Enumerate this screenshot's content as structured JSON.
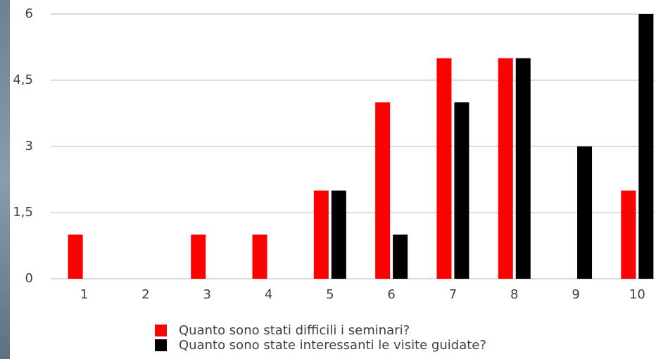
{
  "chart_data": {
    "type": "bar",
    "categories": [
      "1",
      "2",
      "3",
      "4",
      "5",
      "6",
      "7",
      "8",
      "9",
      "10"
    ],
    "series": [
      {
        "name": "Quanto sono stati difficili i seminari?",
        "color": "#ff0000",
        "values": [
          1,
          0,
          1,
          1,
          2,
          4,
          5,
          5,
          0,
          2
        ]
      },
      {
        "name": "Quanto sono state interessanti le visite guidate?",
        "color": "#000000",
        "values": [
          0,
          0,
          0,
          0,
          2,
          1,
          4,
          5,
          3,
          6
        ]
      }
    ],
    "ylim": [
      0,
      6
    ],
    "yticks": [
      0,
      {
        "value": 1.5,
        "label": "1,5"
      },
      3,
      {
        "value": 4.5,
        "label": "4,5"
      },
      6
    ],
    "grid": true,
    "legend": "bottom"
  }
}
